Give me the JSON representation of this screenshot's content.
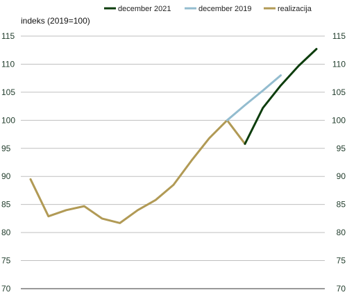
{
  "chart_data": {
    "type": "line",
    "ylabel": "indeks (2019=100)",
    "ylim": [
      70,
      115
    ],
    "yticks": [
      70,
      75,
      80,
      85,
      90,
      95,
      100,
      105,
      110,
      115
    ],
    "x_count": 17,
    "grid": "horizontal",
    "legend_position": "top",
    "series": [
      {
        "name": "december 2021",
        "color": "#0d3d0d",
        "x_index": [
          12,
          13,
          14,
          15,
          16
        ],
        "values": [
          95.8,
          102.2,
          106.2,
          109.7,
          112.7
        ]
      },
      {
        "name": "december 2019",
        "color": "#93bccf",
        "x_index": [
          11,
          12,
          13,
          14
        ],
        "values": [
          100.0,
          102.7,
          105.3,
          108.0
        ]
      },
      {
        "name": "realizacija",
        "color": "#b19a55",
        "x_index": [
          0,
          1,
          2,
          3,
          4,
          5,
          6,
          7,
          8,
          9,
          10,
          11,
          12
        ],
        "values": [
          89.5,
          82.9,
          84.0,
          84.7,
          82.5,
          81.7,
          84.0,
          85.8,
          88.5,
          92.8,
          96.8,
          100.0,
          95.8
        ]
      }
    ]
  }
}
